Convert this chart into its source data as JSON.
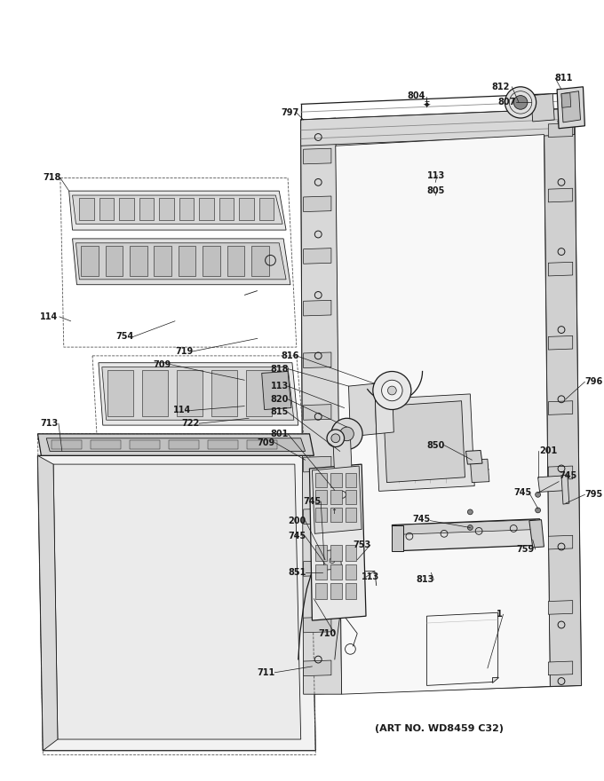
{
  "bg_color": "#ffffff",
  "line_color": "#1a1a1a",
  "label_color": "#111111",
  "art_no": "(ART NO. WD8459 C32)",
  "lw_thin": 0.6,
  "lw_med": 0.9,
  "lw_thick": 1.4,
  "label_fs": 7.0,
  "label_bold_fs": 8.5,
  "figw": 6.8,
  "figh": 8.8,
  "dpi": 100
}
